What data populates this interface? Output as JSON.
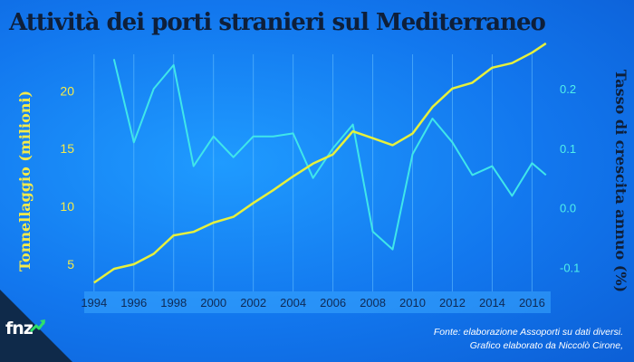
{
  "title": "Attività dei porti stranieri sul Mediterraneo",
  "source_line1": "Fonte: elaborazione Assoporti su dati diversi.",
  "source_line2": "Grafico elaborato da Niccolò Cirone,",
  "logo": {
    "text": "fnz",
    "icon": "growth-arrow-icon",
    "accent": "#2ee06a"
  },
  "colors": {
    "left_series": "#e6f03c",
    "right_series": "#3fe6ea",
    "title": "#0e1f3a"
  },
  "chart_data": {
    "type": "line",
    "ylabel_left": "Tonnellaggio (milioni)",
    "ylabel_right": "Tasso di crescita annuo (%)",
    "x_ticks": [
      "1994",
      "1996",
      "1998",
      "2000",
      "2002",
      "2004",
      "2006",
      "2008",
      "2010",
      "2012",
      "2014",
      "2016"
    ],
    "xlim": [
      1993.6,
      2016.8
    ],
    "ylim_left": [
      3.2,
      23
    ],
    "ylim_right": [
      -0.13,
      0.255
    ],
    "left_ticks": [
      {
        "value": 5,
        "label": "5"
      },
      {
        "value": 10,
        "label": "10"
      },
      {
        "value": 15,
        "label": "15"
      },
      {
        "value": 20,
        "label": "20"
      }
    ],
    "right_ticks": [
      {
        "value": 0.2,
        "label": "0.2"
      },
      {
        "value": 0.1,
        "label": "0.1"
      },
      {
        "value": 0.0,
        "label": "0.0"
      },
      {
        "value": -0.1,
        "label": "-0.1"
      }
    ],
    "grid": "vertical",
    "series": [
      {
        "axis": "left",
        "x": [
          1994,
          1995,
          1996,
          1997,
          1998,
          1999,
          2000,
          2001,
          2002,
          2003,
          2004,
          2005,
          2006,
          2007,
          2008,
          2009,
          2010,
          2011,
          2012,
          2013,
          2014,
          2015,
          2016,
          2016.7
        ],
        "values": [
          3.4,
          4.6,
          5.0,
          5.9,
          7.5,
          7.8,
          8.6,
          9.1,
          10.3,
          11.4,
          12.6,
          13.7,
          14.5,
          16.5,
          15.9,
          15.3,
          16.3,
          18.6,
          20.2,
          20.7,
          22.0,
          22.4,
          23.3,
          24.1
        ]
      },
      {
        "axis": "right",
        "x": [
          1995,
          1996,
          1997,
          1998,
          1999,
          2000,
          2001,
          2002,
          2003,
          2004,
          2005,
          2006,
          2007,
          2008,
          2009,
          2010,
          2011,
          2012,
          2013,
          2014,
          2015,
          2016,
          2016.7
        ],
        "values": [
          0.25,
          0.11,
          0.2,
          0.24,
          0.07,
          0.12,
          0.085,
          0.12,
          0.12,
          0.125,
          0.05,
          0.1,
          0.14,
          -0.04,
          -0.07,
          0.09,
          0.15,
          0.11,
          0.055,
          0.07,
          0.02,
          0.075,
          0.055
        ]
      }
    ]
  }
}
